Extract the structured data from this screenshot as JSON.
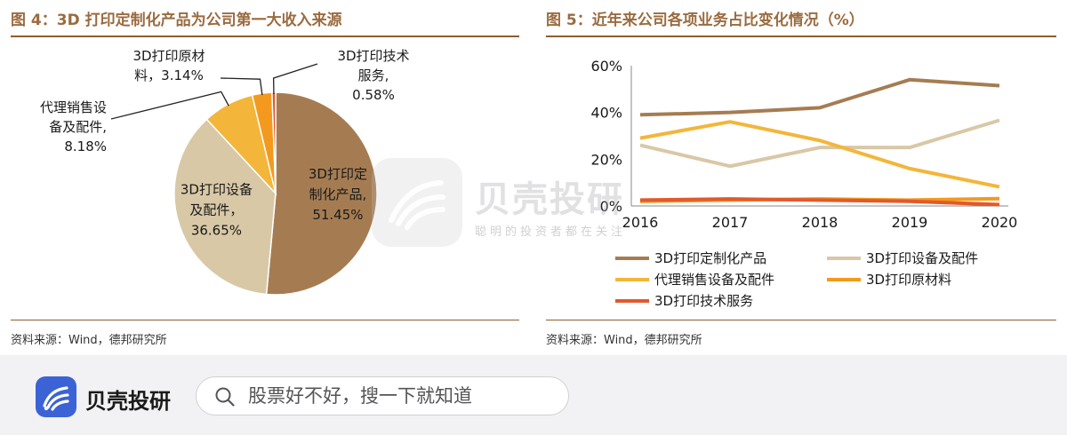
{
  "left_figure": {
    "title": "图 4：3D 打印定制化产品为公司第一大收入来源",
    "source": "资料来源：Wind，德邦研究所"
  },
  "right_figure": {
    "title": "图 5：近年来公司各项业务占比变化情况（%）",
    "source": "资料来源：Wind，德邦研究所"
  },
  "chart_data": [
    {
      "type": "pie",
      "title": "图 4：3D 打印定制化产品为公司第一大收入来源",
      "slices": [
        {
          "label": [
            "3D打印定",
            "制化产品,",
            "51.45%"
          ],
          "value": 51.45,
          "color": "#a57c52"
        },
        {
          "label": [
            "3D打印设备",
            "及配件，",
            "36.65%"
          ],
          "value": 36.65,
          "color": "#d8c8a6"
        },
        {
          "label": [
            "代理销售设",
            "备及配件,",
            "8.18%"
          ],
          "value": 8.18,
          "color": "#f3b63a"
        },
        {
          "label": [
            "3D打印原材",
            "料，3.14%"
          ],
          "value": 3.14,
          "color": "#f39a1e"
        },
        {
          "label": [
            "3D打印技术",
            "服务,",
            "0.58%"
          ],
          "value": 0.58,
          "color": "#e2592b"
        }
      ]
    },
    {
      "type": "line",
      "title": "图 5：近年来公司各项业务占比变化情况（%）",
      "x": [
        "2016",
        "2017",
        "2018",
        "2019",
        "2020"
      ],
      "ylim": [
        0,
        60
      ],
      "yticks": [
        "0%",
        "20%",
        "40%",
        "60%"
      ],
      "grid": false,
      "legend_placement": "bottom",
      "series": [
        {
          "name": "3D打印定制化产品",
          "values": [
            39,
            40,
            42,
            54,
            51.45
          ],
          "color": "#a57c52"
        },
        {
          "name": "3D打印设备及配件",
          "values": [
            26,
            17,
            25,
            25,
            36.65
          ],
          "color": "#d8c8a6"
        },
        {
          "name": "代理销售设备及配件",
          "values": [
            29,
            36,
            28,
            16,
            8.18
          ],
          "color": "#f3b63a"
        },
        {
          "name": "3D打印原材料",
          "values": [
            2,
            2.5,
            3,
            2.5,
            3.14
          ],
          "color": "#f39a1e"
        },
        {
          "name": "3D打印技术服务",
          "values": [
            2.5,
            3,
            2.5,
            2,
            0.58
          ],
          "color": "#e2592b"
        }
      ]
    }
  ],
  "watermark": {
    "name": "贝壳投研",
    "slogan": "聪明的投资者都在关注"
  },
  "bottom_bar": {
    "brand": "贝壳投研",
    "search_placeholder": "股票好不好，搜一下就知道",
    "brand_color": "#3b63d6"
  }
}
